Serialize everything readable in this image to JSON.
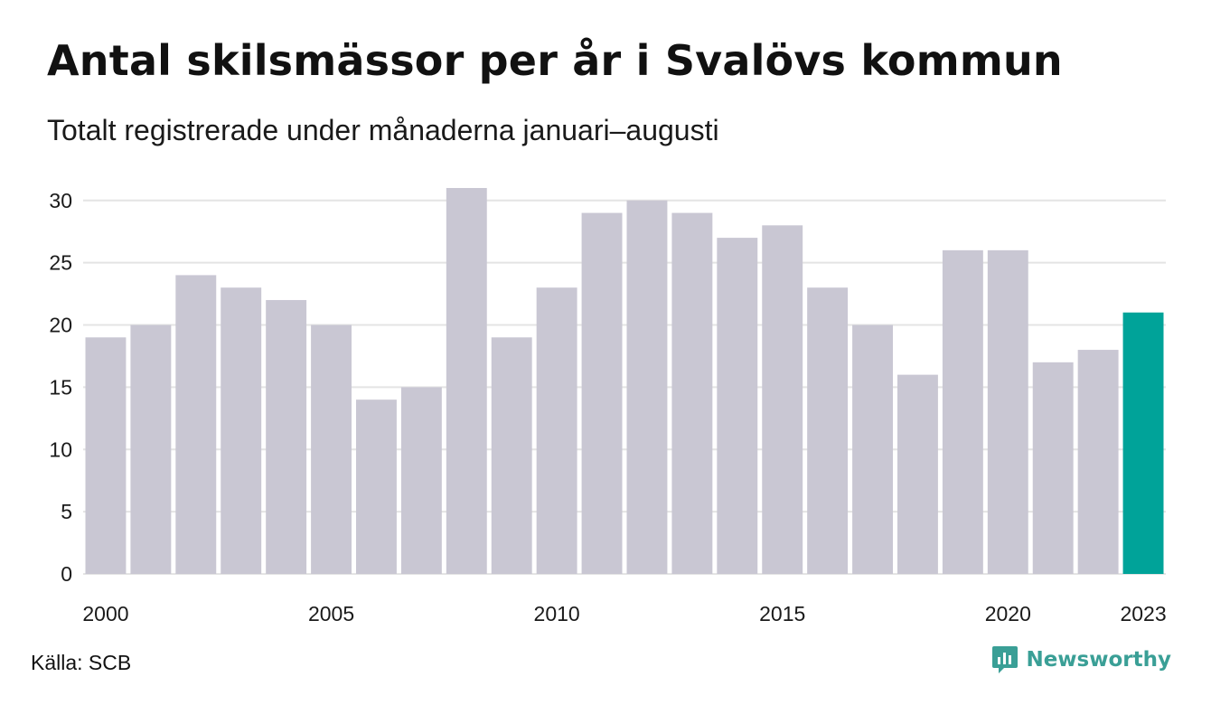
{
  "header": {
    "title": "Antal skilsmässor per år i Svalövs kommun",
    "subtitle": "Totalt registrerade under månaderna januari–augusti"
  },
  "footer": {
    "source": "Källa: SCB",
    "brand": "Newsworthy",
    "brand_icon": "newsworthy-logo-icon"
  },
  "colors": {
    "bar": "#c9c7d3",
    "highlight": "#00a399",
    "grid": "#e4e4e4",
    "brand": "#3a9f96"
  },
  "chart_data": {
    "type": "bar",
    "title": "Antal skilsmässor per år i Svalövs kommun",
    "subtitle": "Totalt registrerade under månaderna januari–augusti",
    "categories": [
      2000,
      2001,
      2002,
      2003,
      2004,
      2005,
      2006,
      2007,
      2008,
      2009,
      2010,
      2011,
      2012,
      2013,
      2014,
      2015,
      2016,
      2017,
      2018,
      2019,
      2020,
      2021,
      2022,
      2023
    ],
    "values": [
      19,
      20,
      24,
      23,
      22,
      20,
      14,
      15,
      31,
      19,
      23,
      29,
      30,
      29,
      27,
      28,
      23,
      20,
      16,
      26,
      26,
      17,
      18,
      21
    ],
    "highlight_category": 2023,
    "x_tick_labels": [
      "2000",
      "2005",
      "2010",
      "2015",
      "2020",
      "2023"
    ],
    "y_ticks": [
      0,
      5,
      10,
      15,
      20,
      25,
      30
    ],
    "ylim": [
      0,
      31
    ],
    "xlabel": "",
    "ylabel": "",
    "grid": true,
    "legend": "none"
  }
}
